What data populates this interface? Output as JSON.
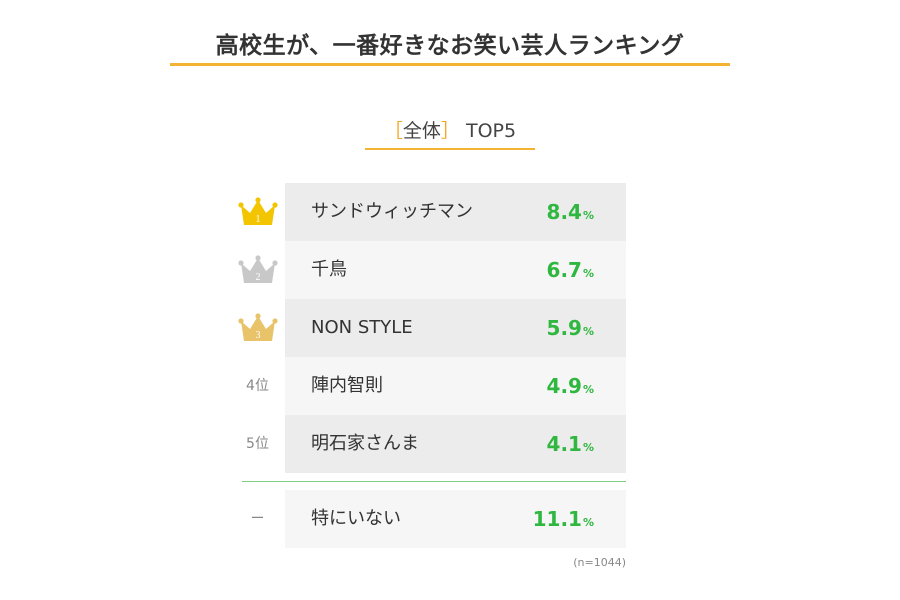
{
  "title": "高校生が、一番好きなお笑い芸人ランキング",
  "subtitle": {
    "open": "［",
    "label": "全体",
    "close": "］",
    "tail": "TOP5"
  },
  "chart_data": {
    "type": "table",
    "title": "高校生が、一番好きなお笑い芸人ランキング",
    "subtitle": "［全体］TOP5",
    "unit": "%",
    "rows": [
      {
        "rank": "1",
        "rank_display": "crown-gold",
        "name": "サンドウィッチマン",
        "value": 8.4,
        "value_label": "8.4",
        "bg": "#ececec"
      },
      {
        "rank": "2",
        "rank_display": "crown-silver",
        "name": "千鳥",
        "value": 6.7,
        "value_label": "6.7",
        "bg": "#f6f6f6"
      },
      {
        "rank": "3",
        "rank_display": "crown-bronze",
        "name": "NON STYLE",
        "value": 5.9,
        "value_label": "5.9",
        "bg": "#ececec"
      },
      {
        "rank": "4位",
        "rank_display": "text",
        "name": "陣内智則",
        "value": 4.9,
        "value_label": "4.9",
        "bg": "#f6f6f6"
      },
      {
        "rank": "5位",
        "rank_display": "text",
        "name": "明石家さんま",
        "value": 4.1,
        "value_label": "4.1",
        "bg": "#ececec"
      }
    ],
    "other": {
      "rank": "ー",
      "name": "特にいない",
      "value": 11.1,
      "value_label": "11.1",
      "bg": "#f6f6f6"
    },
    "note": "(n=1044)"
  },
  "colors": {
    "accent": "#f5b335",
    "value_green": "#2fb73f",
    "crown_gold": "#f2c500",
    "crown_silver": "#c8c8c8",
    "crown_bronze": "#e8c36a"
  }
}
